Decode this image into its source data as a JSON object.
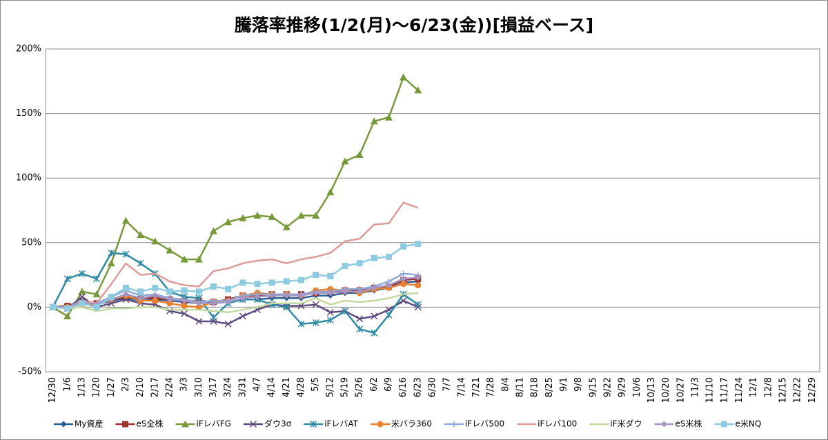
{
  "chart_data": {
    "type": "line",
    "title": "騰落率推移(1/2(月)〜6/23(金))[損益ベース]",
    "categories": [
      "12/30",
      "1/6",
      "1/13",
      "1/20",
      "1/27",
      "2/3",
      "2/10",
      "2/17",
      "2/24",
      "3/3",
      "3/10",
      "3/17",
      "3/24",
      "3/31",
      "4/7",
      "4/14",
      "4/21",
      "4/28",
      "5/5",
      "5/12",
      "5/19",
      "5/26",
      "6/2",
      "6/9",
      "6/16",
      "6/23",
      "6/30",
      "7/7",
      "7/14",
      "7/21",
      "7/28",
      "8/4",
      "8/11",
      "8/18",
      "8/25",
      "9/1",
      "9/8",
      "9/15",
      "9/22",
      "9/29",
      "10/6",
      "10/13",
      "10/20",
      "10/27",
      "11/3",
      "11/10",
      "11/17",
      "11/24",
      "12/1",
      "12/8",
      "12/15",
      "12/22",
      "12/29"
    ],
    "ylim": [
      -50,
      200
    ],
    "yticks": [
      {
        "value": -50,
        "label": "-50%"
      },
      {
        "value": 0,
        "label": "0%"
      },
      {
        "value": 50,
        "label": "50%"
      },
      {
        "value": 100,
        "label": "100%"
      },
      {
        "value": 150,
        "label": "150%"
      },
      {
        "value": 200,
        "label": "200%"
      }
    ],
    "grid": true,
    "legend": "bottom",
    "series": [
      {
        "name": "My資産",
        "color": "#2a5d94",
        "marker": "diamond",
        "values": [
          0,
          1,
          3,
          2,
          5,
          7,
          5,
          6,
          5,
          4,
          3,
          3,
          4,
          6,
          6,
          7,
          7,
          7,
          9,
          9,
          11,
          11,
          13,
          15,
          19,
          20,
          null,
          null,
          null,
          null,
          null,
          null,
          null,
          null,
          null,
          null,
          null,
          null,
          null,
          null,
          null,
          null,
          null,
          null,
          null,
          null,
          null,
          null,
          null,
          null,
          null,
          null,
          null
        ]
      },
      {
        "name": "eS全株",
        "color": "#a0302d",
        "marker": "square",
        "values": [
          0,
          1,
          4,
          3,
          6,
          8,
          7,
          7,
          6,
          5,
          5,
          4,
          6,
          9,
          9,
          10,
          10,
          10,
          11,
          12,
          13,
          13,
          15,
          16,
          21,
          22,
          null,
          null,
          null,
          null,
          null,
          null,
          null,
          null,
          null,
          null,
          null,
          null,
          null,
          null,
          null,
          null,
          null,
          null,
          null,
          null,
          null,
          null,
          null,
          null,
          null,
          null,
          null
        ]
      },
      {
        "name": "iFレバFG",
        "color": "#77993a",
        "marker": "triangle",
        "values": [
          0,
          -7,
          12,
          10,
          34,
          67,
          56,
          51,
          44,
          37,
          37,
          59,
          66,
          69,
          71,
          70,
          62,
          71,
          71,
          89,
          113,
          118,
          144,
          147,
          178,
          168,
          null,
          null,
          null,
          null,
          null,
          null,
          null,
          null,
          null,
          null,
          null,
          null,
          null,
          null,
          null,
          null,
          null,
          null,
          null,
          null,
          null,
          null,
          null,
          null,
          null,
          null,
          null
        ]
      },
      {
        "name": "ダウ3σ",
        "color": "#5f4a80",
        "marker": "x",
        "values": [
          0,
          -1,
          8,
          0,
          3,
          6,
          3,
          2,
          -3,
          -5,
          -11,
          -11,
          -13,
          -7,
          -2,
          2,
          1,
          1,
          2,
          -4,
          -3,
          -9,
          -7,
          -2,
          5,
          0,
          null,
          null,
          null,
          null,
          null,
          null,
          null,
          null,
          null,
          null,
          null,
          null,
          null,
          null,
          null,
          null,
          null,
          null,
          null,
          null,
          null,
          null,
          null,
          null,
          null,
          null,
          null
        ]
      },
      {
        "name": "iFレバAT",
        "color": "#2f8aa3",
        "marker": "star",
        "values": [
          0,
          22,
          26,
          22,
          42,
          41,
          34,
          26,
          12,
          8,
          7,
          -8,
          3,
          6,
          6,
          2,
          0,
          -13,
          -12,
          -10,
          -3,
          -17,
          -20,
          -6,
          10,
          2,
          null,
          null,
          null,
          null,
          null,
          null,
          null,
          null,
          null,
          null,
          null,
          null,
          null,
          null,
          null,
          null,
          null,
          null,
          null,
          null,
          null,
          null,
          null,
          null,
          null,
          null,
          null
        ]
      },
      {
        "name": "米バラ360",
        "color": "#e8822f",
        "marker": "circle",
        "values": [
          0,
          0,
          2,
          2,
          6,
          9,
          5,
          5,
          3,
          1,
          0,
          4,
          5,
          9,
          11,
          10,
          10,
          9,
          13,
          14,
          13,
          11,
          14,
          15,
          18,
          17,
          null,
          null,
          null,
          null,
          null,
          null,
          null,
          null,
          null,
          null,
          null,
          null,
          null,
          null,
          null,
          null,
          null,
          null,
          null,
          null,
          null,
          null,
          null,
          null,
          null,
          null,
          null
        ]
      },
      {
        "name": "iFレバ500",
        "color": "#8ea8d8",
        "marker": "plus",
        "values": [
          0,
          0,
          5,
          3,
          8,
          13,
          9,
          10,
          7,
          6,
          4,
          5,
          5,
          9,
          10,
          10,
          10,
          10,
          12,
          12,
          14,
          14,
          16,
          20,
          26,
          25,
          null,
          null,
          null,
          null,
          null,
          null,
          null,
          null,
          null,
          null,
          null,
          null,
          null,
          null,
          null,
          null,
          null,
          null,
          null,
          null,
          null,
          null,
          null,
          null,
          null,
          null,
          null
        ]
      },
      {
        "name": "iFレバ100",
        "color": "#dc9a98",
        "marker": "none",
        "values": [
          0,
          -1,
          5,
          3,
          18,
          34,
          25,
          26,
          20,
          17,
          16,
          28,
          30,
          34,
          36,
          37,
          34,
          37,
          39,
          42,
          51,
          53,
          64,
          65,
          81,
          77,
          null,
          null,
          null,
          null,
          null,
          null,
          null,
          null,
          null,
          null,
          null,
          null,
          null,
          null,
          null,
          null,
          null,
          null,
          null,
          null,
          null,
          null,
          null,
          null,
          null,
          null,
          null
        ]
      },
      {
        "name": "iF米ダウ",
        "color": "#c2d9a0",
        "marker": "none",
        "values": [
          0,
          -1,
          0,
          -3,
          -1,
          -1,
          0,
          0,
          -2,
          -2,
          -2,
          -3,
          -4,
          -2,
          0,
          3,
          3,
          3,
          7,
          2,
          5,
          4,
          5,
          7,
          10,
          11,
          null,
          null,
          null,
          null,
          null,
          null,
          null,
          null,
          null,
          null,
          null,
          null,
          null,
          null,
          null,
          null,
          null,
          null,
          null,
          null,
          null,
          null,
          null,
          null,
          null,
          null,
          null
        ]
      },
      {
        "name": "eS米株",
        "color": "#a595c2",
        "marker": "diamond",
        "values": [
          0,
          0,
          4,
          2,
          6,
          10,
          7,
          9,
          6,
          5,
          3,
          3,
          4,
          7,
          8,
          9,
          9,
          9,
          11,
          11,
          12,
          12,
          15,
          17,
          22,
          23,
          null,
          null,
          null,
          null,
          null,
          null,
          null,
          null,
          null,
          null,
          null,
          null,
          null,
          null,
          null,
          null,
          null,
          null,
          null,
          null,
          null,
          null,
          null,
          null,
          null,
          null,
          null
        ]
      },
      {
        "name": "e米NQ",
        "color": "#8fcbe0",
        "marker": "square",
        "values": [
          0,
          -1,
          3,
          0,
          8,
          15,
          12,
          15,
          12,
          13,
          12,
          16,
          14,
          19,
          18,
          19,
          20,
          21,
          25,
          24,
          32,
          34,
          38,
          39,
          47,
          49,
          null,
          null,
          null,
          null,
          null,
          null,
          null,
          null,
          null,
          null,
          null,
          null,
          null,
          null,
          null,
          null,
          null,
          null,
          null,
          null,
          null,
          null,
          null,
          null,
          null,
          null,
          null
        ]
      }
    ]
  }
}
